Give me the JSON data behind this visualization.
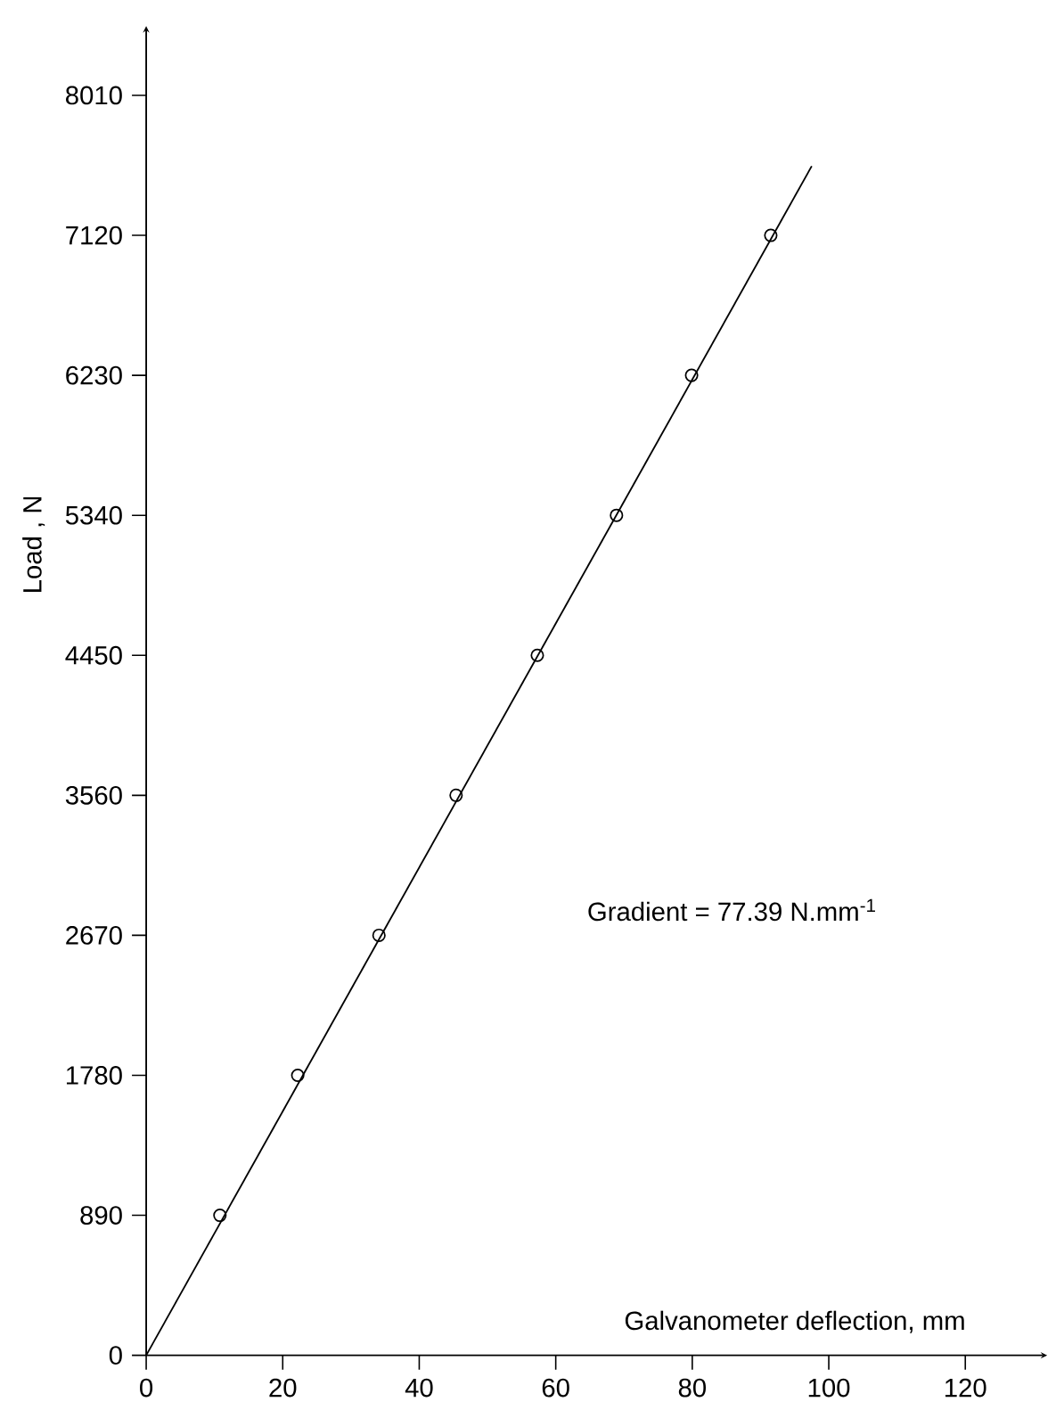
{
  "chart_data": {
    "type": "scatter",
    "xlabel": "Galvanometer  deflection, mm",
    "ylabel": "Load , N",
    "annotations": [
      "Gradient = 77.39 N.mm$^{-1}$"
    ],
    "xlim": [
      0,
      132
    ],
    "ylim": [
      0,
      8450
    ],
    "xticks": [
      0,
      20,
      40,
      60,
      80,
      100,
      120
    ],
    "yticks": [
      0,
      890,
      1780,
      2670,
      3560,
      4450,
      5340,
      6230,
      7120,
      8010
    ],
    "grid": false,
    "series": [
      {
        "marker": "circle",
        "color": "#000000",
        "x": [
          10.8,
          22.2,
          34.1,
          45.4,
          57.3,
          68.9,
          79.9,
          91.5
        ],
        "values": [
          890,
          1780,
          2670,
          3560,
          4450,
          5340,
          6230,
          7120
        ]
      },
      {
        "type": "line",
        "marker": "none",
        "line_style": "solid",
        "color": "#000000",
        "x": [
          0,
          97.5
        ],
        "values": [
          0,
          7560
        ]
      }
    ]
  }
}
